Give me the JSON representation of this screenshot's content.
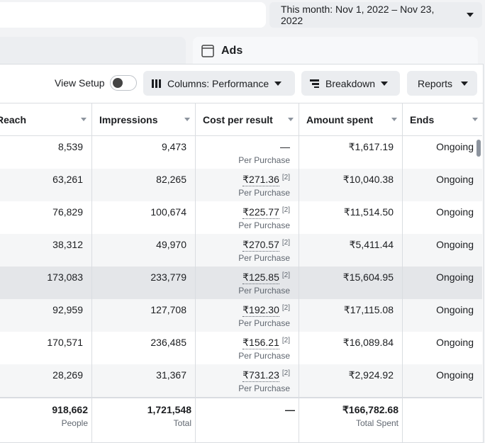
{
  "header": {
    "date_range": "This month: Nov 1, 2022 – Nov 23, 2022",
    "tab": "Ads"
  },
  "toolbar": {
    "view_setup": "View Setup",
    "columns": "Columns: Performance",
    "breakdown": "Breakdown",
    "reports": "Reports"
  },
  "table": {
    "columns": [
      "Reach",
      "Impressions",
      "Cost per result",
      "Amount spent",
      "Ends"
    ],
    "rows": [
      {
        "reach": "8,539",
        "impressions": "9,473",
        "cost": "—",
        "cost_type": "Per Purchase",
        "amount": "₹1,617.19",
        "ends": "Ongoing"
      },
      {
        "reach": "63,261",
        "impressions": "82,265",
        "cost": "₹271.36",
        "footnote": "[2]",
        "cost_type": "Per Purchase",
        "amount": "₹10,040.38",
        "ends": "Ongoing"
      },
      {
        "reach": "76,829",
        "impressions": "100,674",
        "cost": "₹225.77",
        "footnote": "[2]",
        "cost_type": "Per Purchase",
        "amount": "₹11,514.50",
        "ends": "Ongoing"
      },
      {
        "reach": "38,312",
        "impressions": "49,970",
        "cost": "₹270.57",
        "footnote": "[2]",
        "cost_type": "Per Purchase",
        "amount": "₹5,411.44",
        "ends": "Ongoing"
      },
      {
        "reach": "173,083",
        "impressions": "233,779",
        "cost": "₹125.85",
        "footnote": "[2]",
        "cost_type": "Per Purchase",
        "amount": "₹15,604.95",
        "ends": "Ongoing"
      },
      {
        "reach": "92,959",
        "impressions": "127,708",
        "cost": "₹192.30",
        "footnote": "[2]",
        "cost_type": "Per Purchase",
        "amount": "₹17,115.08",
        "ends": "Ongoing"
      },
      {
        "reach": "170,571",
        "impressions": "236,485",
        "cost": "₹156.21",
        "footnote": "[2]",
        "cost_type": "Per Purchase",
        "amount": "₹16,089.84",
        "ends": "Ongoing"
      },
      {
        "reach": "28,269",
        "impressions": "31,367",
        "cost": "₹731.23",
        "footnote": "[2]",
        "cost_type": "Per Purchase",
        "amount": "₹2,924.92",
        "ends": "Ongoing"
      }
    ],
    "totals": {
      "reach": "918,662",
      "reach_label": "People",
      "impressions": "1,721,548",
      "impressions_label": "Total",
      "cost": "—",
      "amount": "₹166,782.68",
      "amount_label": "Total Spent"
    }
  }
}
